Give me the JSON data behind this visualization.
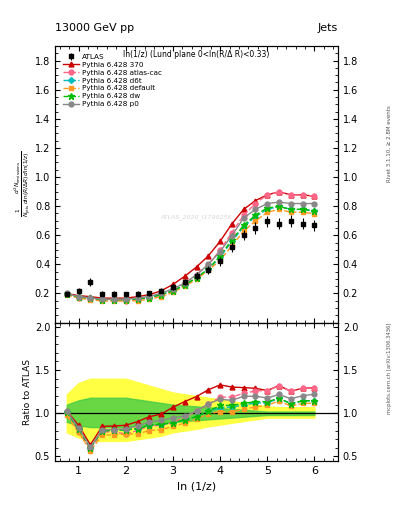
{
  "title_left": "13000 GeV pp",
  "title_right": "Jets",
  "plot_label": "ln(1/z) (Lund plane 0<ln(R/Δ R)<0.33)",
  "watermark": "ATLAS_2020_I1790256",
  "ylabel_main": "$\\frac{1}{N_{\\rm jets}}\\frac{d^2 N_{\\rm emissions}}{d\\ln (R/\\Delta R)\\, d\\ln (1/z)}$",
  "ylabel_ratio": "Ratio to ATLAS",
  "xlabel": "ln (1/z)",
  "xlim": [
    0.5,
    6.5
  ],
  "ylim_main": [
    0.0,
    1.9
  ],
  "ylim_ratio": [
    0.45,
    2.05
  ],
  "xticks": [
    1,
    2,
    3,
    4,
    5,
    6
  ],
  "yticks_main": [
    0.2,
    0.4,
    0.6,
    0.8,
    1.0,
    1.2,
    1.4,
    1.6,
    1.8
  ],
  "yticks_ratio": [
    0.5,
    1.0,
    1.5,
    2.0
  ],
  "x_data": [
    0.75,
    1.0,
    1.25,
    1.5,
    1.75,
    2.0,
    2.25,
    2.5,
    2.75,
    3.0,
    3.25,
    3.5,
    3.75,
    4.0,
    4.25,
    4.5,
    4.75,
    5.0,
    5.25,
    5.5,
    5.75,
    6.0
  ],
  "atlas_y": [
    0.195,
    0.215,
    0.28,
    0.198,
    0.197,
    0.195,
    0.197,
    0.2,
    0.22,
    0.245,
    0.28,
    0.32,
    0.36,
    0.42,
    0.52,
    0.6,
    0.65,
    0.695,
    0.68,
    0.7,
    0.68,
    0.67
  ],
  "atlas_yerr": [
    0.018,
    0.02,
    0.028,
    0.018,
    0.018,
    0.018,
    0.018,
    0.018,
    0.02,
    0.022,
    0.022,
    0.025,
    0.028,
    0.03,
    0.032,
    0.035,
    0.038,
    0.04,
    0.038,
    0.04,
    0.038,
    0.038
  ],
  "py370_y": [
    0.2,
    0.185,
    0.178,
    0.168,
    0.168,
    0.168,
    0.178,
    0.192,
    0.218,
    0.262,
    0.318,
    0.382,
    0.458,
    0.558,
    0.678,
    0.778,
    0.838,
    0.878,
    0.898,
    0.878,
    0.878,
    0.868
  ],
  "pyatlascac_y": [
    0.198,
    0.168,
    0.165,
    0.155,
    0.155,
    0.148,
    0.158,
    0.17,
    0.19,
    0.218,
    0.268,
    0.328,
    0.398,
    0.498,
    0.618,
    0.738,
    0.818,
    0.878,
    0.898,
    0.878,
    0.878,
    0.868
  ],
  "pyd6t_y": [
    0.198,
    0.175,
    0.168,
    0.158,
    0.158,
    0.158,
    0.162,
    0.172,
    0.192,
    0.218,
    0.258,
    0.308,
    0.368,
    0.448,
    0.558,
    0.658,
    0.728,
    0.778,
    0.798,
    0.778,
    0.778,
    0.768
  ],
  "pydefault_y": [
    0.19,
    0.168,
    0.158,
    0.148,
    0.148,
    0.148,
    0.15,
    0.16,
    0.178,
    0.208,
    0.248,
    0.298,
    0.358,
    0.428,
    0.528,
    0.628,
    0.698,
    0.758,
    0.778,
    0.758,
    0.758,
    0.748
  ],
  "pydw_y": [
    0.198,
    0.175,
    0.168,
    0.158,
    0.158,
    0.158,
    0.162,
    0.172,
    0.192,
    0.218,
    0.258,
    0.308,
    0.368,
    0.458,
    0.568,
    0.668,
    0.738,
    0.788,
    0.798,
    0.778,
    0.778,
    0.768
  ],
  "pyp0_y": [
    0.2,
    0.178,
    0.17,
    0.16,
    0.16,
    0.16,
    0.168,
    0.18,
    0.202,
    0.232,
    0.272,
    0.328,
    0.4,
    0.488,
    0.598,
    0.718,
    0.778,
    0.818,
    0.828,
    0.818,
    0.818,
    0.818
  ],
  "band_yellow_low": [
    0.78,
    0.72,
    0.68,
    0.68,
    0.68,
    0.68,
    0.7,
    0.72,
    0.74,
    0.78,
    0.8,
    0.82,
    0.85,
    0.87,
    0.89,
    0.91,
    0.93,
    0.95,
    0.95,
    0.95,
    0.95,
    0.95
  ],
  "band_yellow_high": [
    1.22,
    1.35,
    1.4,
    1.4,
    1.4,
    1.4,
    1.36,
    1.32,
    1.28,
    1.24,
    1.22,
    1.2,
    1.18,
    1.16,
    1.14,
    1.12,
    1.1,
    1.08,
    1.07,
    1.07,
    1.07,
    1.07
  ],
  "band_green_low": [
    0.9,
    0.86,
    0.84,
    0.84,
    0.84,
    0.84,
    0.86,
    0.87,
    0.88,
    0.9,
    0.91,
    0.92,
    0.93,
    0.94,
    0.95,
    0.96,
    0.97,
    0.98,
    0.98,
    0.98,
    0.98,
    0.98
  ],
  "band_green_high": [
    1.1,
    1.15,
    1.18,
    1.18,
    1.18,
    1.18,
    1.16,
    1.14,
    1.12,
    1.1,
    1.09,
    1.08,
    1.07,
    1.06,
    1.05,
    1.04,
    1.03,
    1.02,
    1.02,
    1.02,
    1.02,
    1.02
  ],
  "color_370": "#cc0000",
  "color_atlascac": "#ff6688",
  "color_d6t": "#00bbbb",
  "color_default": "#ff9922",
  "color_dw": "#00bb00",
  "color_p0": "#888888",
  "color_atlas": "#000000",
  "color_band_yellow": "#ffff44",
  "color_band_green": "#44cc44",
  "right_label": "Rivet 3.1.10, ≥ 2.8M events",
  "bottom_right_label": "mcplots.cern.ch [arXiv:1306.3436]"
}
